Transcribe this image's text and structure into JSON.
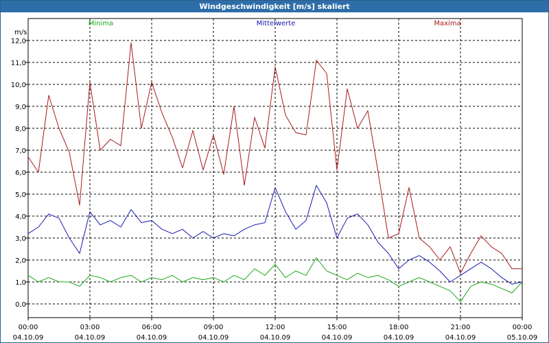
{
  "window": {
    "title": "Windgeschwindigkeit [m/s] skaliert"
  },
  "chart_data": {
    "type": "line",
    "title": "Windgeschwindigkeit [m/s] skaliert",
    "ylabel": "m/s",
    "xlabel": "",
    "ylim": [
      -0.9,
      12.5
    ],
    "xlim": [
      0,
      24
    ],
    "grid": true,
    "yticks": [
      "0,0",
      "1,0",
      "2,0",
      "3,0",
      "4,0",
      "5,0",
      "6,0",
      "7,0",
      "8,0",
      "9,0",
      "10,0",
      "11,0",
      "12,0"
    ],
    "ytick_values": [
      0,
      1,
      2,
      3,
      4,
      5,
      6,
      7,
      8,
      9,
      10,
      11,
      12
    ],
    "xticks": [
      {
        "t": 0,
        "time": "00:00",
        "date": "04.10.09"
      },
      {
        "t": 3,
        "time": "03:00",
        "date": "04.10.09"
      },
      {
        "t": 6,
        "time": "06:00",
        "date": "04.10.09"
      },
      {
        "t": 9,
        "time": "09:00",
        "date": "04.10.09"
      },
      {
        "t": 12,
        "time": "12:00",
        "date": "04.10.09"
      },
      {
        "t": 15,
        "time": "15:00",
        "date": "04.10.09"
      },
      {
        "t": 18,
        "time": "18:00",
        "date": "04.10.09"
      },
      {
        "t": 21,
        "time": "21:00",
        "date": "04.10.09"
      },
      {
        "t": 24,
        "time": "00:00",
        "date": "05.10.09"
      }
    ],
    "series": [
      {
        "name": "Minima",
        "color": "#18a818",
        "x": [
          0,
          0.5,
          1,
          1.5,
          2,
          2.5,
          3,
          3.5,
          4,
          4.5,
          5,
          5.5,
          6,
          6.5,
          7,
          7.5,
          8,
          8.5,
          9,
          9.5,
          10,
          10.5,
          11,
          11.5,
          12,
          12.5,
          13,
          13.5,
          14,
          14.5,
          15,
          15.5,
          16,
          16.5,
          17,
          17.5,
          18,
          18.5,
          19,
          19.5,
          20,
          20.5,
          21,
          21.5,
          22,
          22.5,
          23,
          23.5,
          24
        ],
        "values": [
          1.3,
          1.0,
          1.2,
          1.0,
          1.0,
          0.8,
          1.3,
          1.2,
          1.0,
          1.2,
          1.3,
          1.0,
          1.2,
          1.1,
          1.3,
          1.0,
          1.2,
          1.1,
          1.2,
          1.0,
          1.3,
          1.1,
          1.6,
          1.3,
          1.8,
          1.2,
          1.5,
          1.3,
          2.1,
          1.5,
          1.3,
          1.1,
          1.4,
          1.2,
          1.3,
          1.1,
          0.8,
          1.0,
          1.2,
          1.0,
          0.8,
          0.6,
          0.1,
          0.8,
          1.0,
          0.9,
          0.7,
          0.5,
          1.0
        ]
      },
      {
        "name": "Mittelwerte",
        "color": "#1818b4",
        "x": [
          0,
          0.5,
          1,
          1.5,
          2,
          2.5,
          3,
          3.5,
          4,
          4.5,
          5,
          5.5,
          6,
          6.5,
          7,
          7.5,
          8,
          8.5,
          9,
          9.5,
          10,
          10.5,
          11,
          11.5,
          12,
          12.5,
          13,
          13.5,
          14,
          14.5,
          15,
          15.5,
          16,
          16.5,
          17,
          17.5,
          18,
          18.5,
          19,
          19.5,
          20,
          20.5,
          21,
          21.5,
          22,
          22.5,
          23,
          23.5,
          24
        ],
        "values": [
          3.2,
          3.5,
          4.1,
          3.9,
          3.0,
          2.3,
          4.2,
          3.6,
          3.8,
          3.5,
          4.3,
          3.7,
          3.8,
          3.4,
          3.2,
          3.4,
          3.0,
          3.3,
          3.0,
          3.2,
          3.1,
          3.4,
          3.6,
          3.7,
          5.3,
          4.2,
          3.4,
          3.8,
          5.4,
          4.6,
          3.0,
          3.9,
          4.1,
          3.6,
          2.8,
          2.3,
          1.6,
          2.0,
          2.2,
          1.9,
          1.5,
          1.0,
          1.3,
          1.6,
          1.9,
          1.6,
          1.2,
          0.9,
          1.0
        ]
      },
      {
        "name": "Maxima",
        "color": "#a81818",
        "x": [
          0,
          0.5,
          1,
          1.5,
          2,
          2.5,
          3,
          3.5,
          4,
          4.5,
          5,
          5.5,
          6,
          6.5,
          7,
          7.5,
          8,
          8.5,
          9,
          9.5,
          10,
          10.5,
          11,
          11.5,
          12,
          12.5,
          13,
          13.5,
          14,
          14.5,
          15,
          15.5,
          16,
          16.5,
          17,
          17.5,
          18,
          18.5,
          19,
          19.5,
          20,
          20.5,
          21,
          21.5,
          22,
          22.5,
          23,
          23.5,
          24
        ],
        "values": [
          6.7,
          6.0,
          9.5,
          8.0,
          6.9,
          4.5,
          10.1,
          7.0,
          7.5,
          7.2,
          11.9,
          8.0,
          10.1,
          8.7,
          7.6,
          6.2,
          7.9,
          6.1,
          7.7,
          5.9,
          9.0,
          5.4,
          8.5,
          7.1,
          10.8,
          8.6,
          7.8,
          7.7,
          11.1,
          10.5,
          6.1,
          9.8,
          8.0,
          8.8,
          6.0,
          3.0,
          3.2,
          5.3,
          3.0,
          2.6,
          2.0,
          2.6,
          1.4,
          2.3,
          3.1,
          2.6,
          2.3,
          1.6,
          1.6
        ]
      }
    ]
  }
}
